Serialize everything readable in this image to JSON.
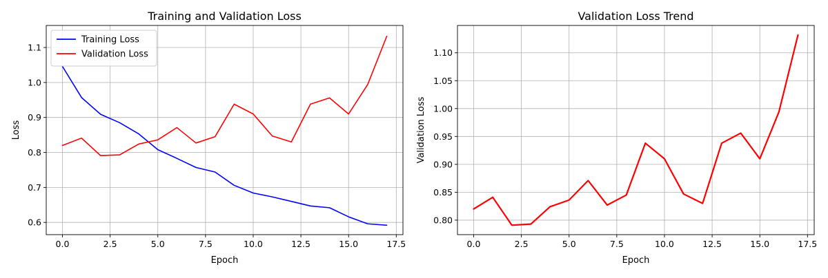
{
  "chart_data": [
    {
      "type": "line",
      "title": "Training and Validation Loss",
      "xlabel": "Epoch",
      "ylabel": "Loss",
      "xlim": [
        -0.85,
        17.85
      ],
      "ylim": [
        0.565,
        1.163
      ],
      "xticks": [
        0,
        2.5,
        5,
        7.5,
        10,
        12.5,
        15,
        17.5
      ],
      "xtick_labels": [
        "0.0",
        "2.5",
        "5.0",
        "7.5",
        "10.0",
        "12.5",
        "15.0",
        "17.5"
      ],
      "yticks": [
        0.6,
        0.7,
        0.8,
        0.9,
        1.0,
        1.1
      ],
      "ytick_labels": [
        "0.6",
        "0.7",
        "0.8",
        "0.9",
        "1.0",
        "1.1"
      ],
      "grid": true,
      "legend": "top-left",
      "x": [
        0,
        1,
        2,
        3,
        4,
        5,
        6,
        7,
        8,
        9,
        10,
        11,
        12,
        13,
        14,
        15,
        16,
        17
      ],
      "series": [
        {
          "name": "Training Loss",
          "color": "#0000ff",
          "values": [
            1.046,
            0.957,
            0.909,
            0.885,
            0.853,
            0.808,
            0.783,
            0.757,
            0.744,
            0.706,
            0.684,
            0.673,
            0.66,
            0.647,
            0.642,
            0.616,
            0.596,
            0.592
          ]
        },
        {
          "name": "Validation Loss",
          "color": "#ff0000",
          "values": [
            0.82,
            0.841,
            0.791,
            0.793,
            0.824,
            0.836,
            0.871,
            0.827,
            0.845,
            0.938,
            0.91,
            0.847,
            0.83,
            0.938,
            0.956,
            0.91,
            0.994,
            1.132
          ]
        }
      ]
    },
    {
      "type": "line",
      "title": "Validation Loss Trend",
      "xlabel": "Epoch",
      "ylabel": "Validation Loss",
      "xlim": [
        -0.85,
        17.85
      ],
      "ylim": [
        0.774,
        1.149
      ],
      "xticks": [
        0,
        2.5,
        5,
        7.5,
        10,
        12.5,
        15,
        17.5
      ],
      "xtick_labels": [
        "0.0",
        "2.5",
        "5.0",
        "7.5",
        "10.0",
        "12.5",
        "15.0",
        "17.5"
      ],
      "yticks": [
        0.8,
        0.85,
        0.9,
        0.95,
        1.0,
        1.05,
        1.1
      ],
      "ytick_labels": [
        "0.80",
        "0.85",
        "0.90",
        "0.95",
        "1.00",
        "1.05",
        "1.10"
      ],
      "grid": true,
      "x": [
        0,
        1,
        2,
        3,
        4,
        5,
        6,
        7,
        8,
        9,
        10,
        11,
        12,
        13,
        14,
        15,
        16,
        17
      ],
      "series": [
        {
          "color": "#ff0000",
          "values": [
            0.82,
            0.841,
            0.791,
            0.793,
            0.824,
            0.836,
            0.871,
            0.827,
            0.845,
            0.938,
            0.91,
            0.847,
            0.83,
            0.938,
            0.956,
            0.91,
            0.994,
            1.132
          ]
        }
      ]
    }
  ]
}
